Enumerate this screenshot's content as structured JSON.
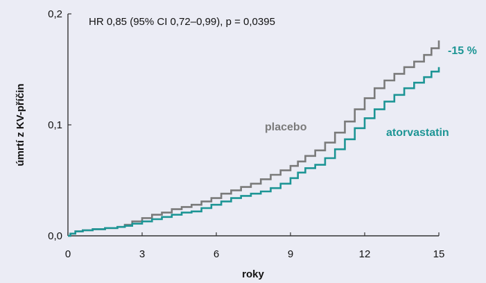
{
  "chart_data": {
    "type": "line",
    "title": "",
    "annotation": "HR 0,85 (95% CI 0,72–0,99), p = 0,0395",
    "xlabel": "roky",
    "ylabel": "úmrtí z KV-příčin",
    "xlim": [
      0,
      15
    ],
    "ylim": [
      0,
      0.2
    ],
    "x_ticks": [
      0,
      3,
      6,
      9,
      12,
      15
    ],
    "x_tick_labels": [
      "0",
      "3",
      "6",
      "9",
      "12",
      "15"
    ],
    "y_ticks": [
      0,
      0.1,
      0.2
    ],
    "y_tick_labels": [
      "0,0",
      "0,1",
      "0,2"
    ],
    "grid": false,
    "legend": "none",
    "reduction_label": "-15 %",
    "series": [
      {
        "name": "placebo",
        "color": "#7a7a7a",
        "x": [
          0,
          0.1,
          0.3,
          0.6,
          1.0,
          1.5,
          2.0,
          2.3,
          2.6,
          3.0,
          3.4,
          3.8,
          4.2,
          4.6,
          5.0,
          5.4,
          5.8,
          6.2,
          6.6,
          7.0,
          7.4,
          7.8,
          8.2,
          8.6,
          9.0,
          9.3,
          9.6,
          10.0,
          10.4,
          10.8,
          11.2,
          11.6,
          12.0,
          12.4,
          12.8,
          13.2,
          13.6,
          14.0,
          14.4,
          14.7,
          15.0
        ],
        "y": [
          0.0,
          0.002,
          0.004,
          0.005,
          0.006,
          0.007,
          0.008,
          0.01,
          0.013,
          0.016,
          0.019,
          0.021,
          0.024,
          0.026,
          0.028,
          0.031,
          0.034,
          0.038,
          0.041,
          0.044,
          0.047,
          0.051,
          0.055,
          0.059,
          0.063,
          0.067,
          0.072,
          0.077,
          0.084,
          0.093,
          0.103,
          0.114,
          0.124,
          0.133,
          0.14,
          0.146,
          0.152,
          0.157,
          0.163,
          0.169,
          0.176
        ]
      },
      {
        "name": "atorvastatin",
        "color": "#1d9595",
        "x": [
          0,
          0.1,
          0.3,
          0.6,
          1.0,
          1.5,
          2.0,
          2.3,
          2.6,
          3.0,
          3.4,
          3.8,
          4.2,
          4.6,
          5.0,
          5.4,
          5.8,
          6.2,
          6.6,
          7.0,
          7.4,
          7.8,
          8.2,
          8.6,
          9.0,
          9.3,
          9.6,
          10.0,
          10.4,
          10.8,
          11.2,
          11.6,
          12.0,
          12.4,
          12.8,
          13.2,
          13.6,
          14.0,
          14.4,
          14.7,
          15.0
        ],
        "y": [
          0.0,
          0.002,
          0.004,
          0.005,
          0.006,
          0.007,
          0.008,
          0.009,
          0.011,
          0.013,
          0.015,
          0.017,
          0.019,
          0.021,
          0.022,
          0.025,
          0.028,
          0.031,
          0.034,
          0.036,
          0.038,
          0.04,
          0.043,
          0.047,
          0.052,
          0.057,
          0.061,
          0.064,
          0.07,
          0.078,
          0.087,
          0.097,
          0.106,
          0.114,
          0.121,
          0.127,
          0.133,
          0.138,
          0.143,
          0.148,
          0.152
        ]
      }
    ]
  }
}
